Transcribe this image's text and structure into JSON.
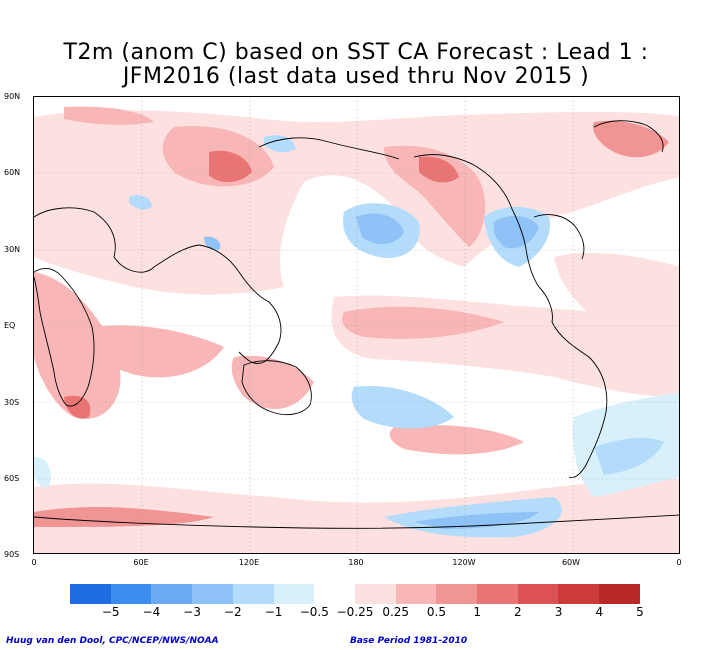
{
  "title": {
    "line1": "T2m (anom C) based on SST CA Forecast : Lead 1 :",
    "line2": "JFM2016 (last data used thru Nov 2015 )"
  },
  "axes": {
    "lat_labels": [
      "90N",
      "60N",
      "30N",
      "EQ",
      "30S",
      "60S",
      "90S"
    ],
    "lon_labels": [
      "0",
      "60E",
      "120E",
      "180",
      "120W",
      "60W",
      "0"
    ]
  },
  "colorbar": {
    "colors": [
      "#1e6de0",
      "#3b8ef0",
      "#6aaaf5",
      "#8fc2f7",
      "#b3dcfa",
      "#d8f0fb",
      "#ffffff",
      "#fde0e0",
      "#f8b6b6",
      "#f19494",
      "#e87474",
      "#dc5252",
      "#cc3a3a",
      "#b82a2a"
    ],
    "labels": [
      "−5",
      "−4",
      "−3",
      "−2",
      "−1",
      "−0.5",
      "−0.25",
      "0.25",
      "0.5",
      "1",
      "2",
      "3",
      "4",
      "5"
    ]
  },
  "footer": {
    "left": "Huug van den Dool, CPC/NCEP/NWS/NOAA",
    "right": "Base Period 1981-2010"
  },
  "map": {
    "ocean_color": "#ffffff",
    "land_outline_color": "#000000"
  }
}
